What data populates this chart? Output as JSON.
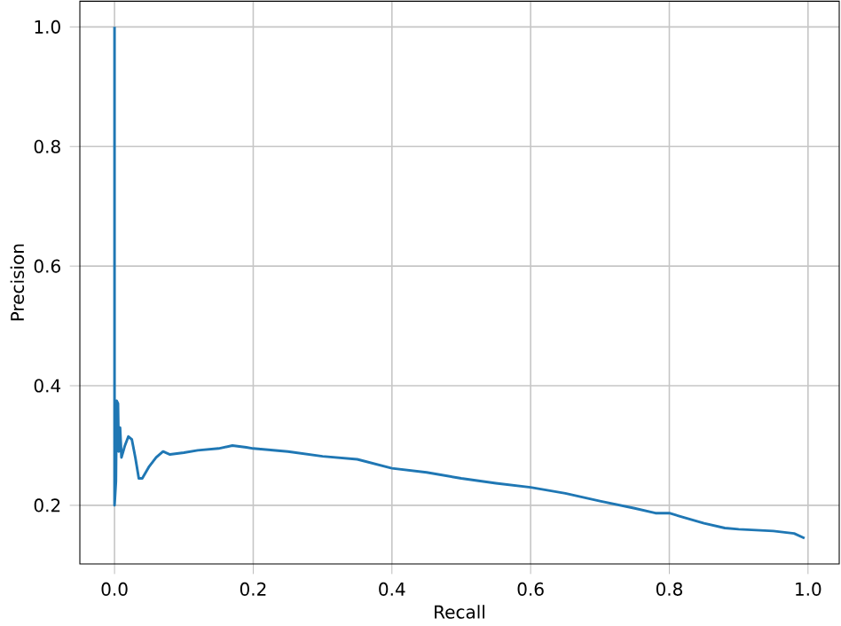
{
  "chart_data": {
    "type": "line",
    "xlabel": "Recall",
    "ylabel": "Precision",
    "xlim": [
      -0.05,
      1.045
    ],
    "ylim": [
      0.102,
      1.043
    ],
    "xticks": [
      {
        "value": 0,
        "label": "0.0"
      },
      {
        "value": 0.2,
        "label": "0.2"
      },
      {
        "value": 0.4,
        "label": "0.4"
      },
      {
        "value": 0.6,
        "label": "0.6"
      },
      {
        "value": 0.8,
        "label": "0.8"
      },
      {
        "value": 1,
        "label": "1.0"
      }
    ],
    "yticks": [
      {
        "value": 0.2,
        "label": "0.2"
      },
      {
        "value": 0.4,
        "label": "0.4"
      },
      {
        "value": 0.6,
        "label": "0.6"
      },
      {
        "value": 0.8,
        "label": "0.8"
      },
      {
        "value": 1,
        "label": "1.0"
      }
    ],
    "grid": true,
    "line_style": "solid",
    "series": [
      {
        "color": "#1f77b4",
        "x": [
          0,
          0,
          0.002,
          0.003,
          0.005,
          0.006,
          0.008,
          0.01,
          0.015,
          0.02,
          0.025,
          0.03,
          0.035,
          0.04,
          0.05,
          0.06,
          0.07,
          0.08,
          0.1,
          0.12,
          0.15,
          0.17,
          0.19,
          0.2,
          0.25,
          0.3,
          0.35,
          0.4,
          0.45,
          0.5,
          0.55,
          0.6,
          0.65,
          0.7,
          0.75,
          0.78,
          0.8,
          0.82,
          0.85,
          0.88,
          0.9,
          0.95,
          0.98,
          0.995
        ],
        "values": [
          1.0,
          0.2,
          0.24,
          0.375,
          0.37,
          0.29,
          0.33,
          0.28,
          0.3,
          0.315,
          0.31,
          0.28,
          0.245,
          0.245,
          0.265,
          0.28,
          0.29,
          0.285,
          0.288,
          0.292,
          0.295,
          0.3,
          0.297,
          0.295,
          0.29,
          0.282,
          0.277,
          0.262,
          0.255,
          0.245,
          0.237,
          0.23,
          0.22,
          0.207,
          0.195,
          0.187,
          0.187,
          0.18,
          0.17,
          0.162,
          0.16,
          0.157,
          0.153,
          0.145
        ]
      }
    ]
  }
}
